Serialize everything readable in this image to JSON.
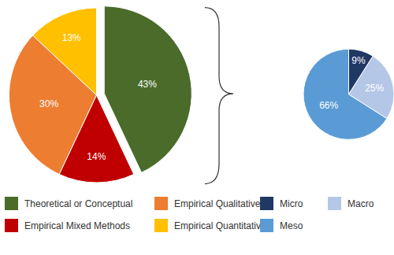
{
  "chart_data": [
    {
      "type": "pie",
      "categories": [
        "Theoretical or Conceptual",
        "Empirical Quantitative",
        "Empirical Qualitative",
        "Empirical Mixed Methods"
      ],
      "values": [
        43,
        13,
        30,
        14
      ],
      "value_labels": [
        "43%",
        "13%",
        "30%",
        "14%"
      ],
      "colors": [
        "#4a6b2a",
        "#ffc000",
        "#ed7d31",
        "#c00000"
      ],
      "data_labels": true,
      "legend": "bottom"
    },
    {
      "type": "pie",
      "categories": [
        "Micro",
        "Meso",
        "Macro"
      ],
      "values": [
        9,
        66,
        25
      ],
      "value_labels": [
        "9%",
        "66%",
        "25%"
      ],
      "colors": [
        "#203864",
        "#5b9bd5",
        "#b4c7e7"
      ],
      "data_labels": true,
      "legend": "bottom"
    }
  ]
}
